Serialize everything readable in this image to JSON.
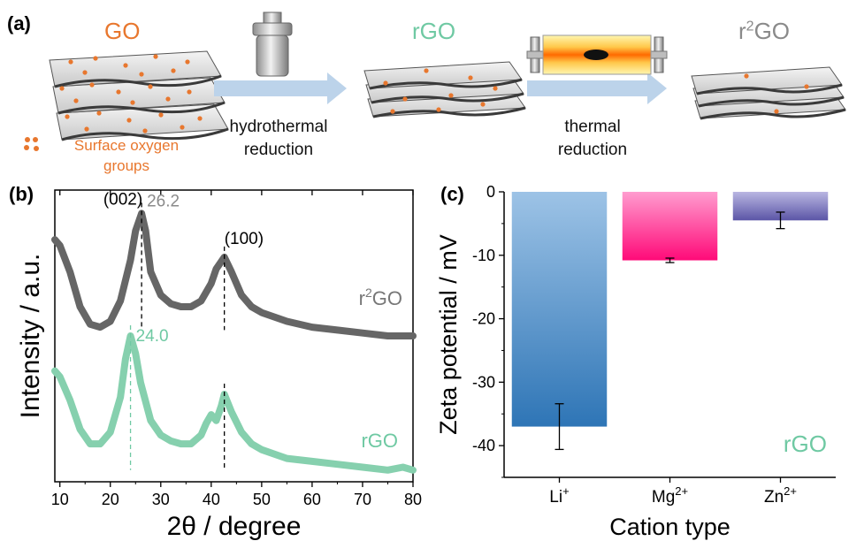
{
  "panels": {
    "a": {
      "tag": "(a)",
      "stages": [
        {
          "label": "GO",
          "color": "#e8772e"
        },
        {
          "label": "rGO",
          "color": "#6fc9a3"
        },
        {
          "label_base": "r",
          "label_sup": "2",
          "label_end": "GO",
          "color": "#8a8a8a"
        }
      ],
      "steps": [
        {
          "line1": "hydrothermal",
          "line2": "reduction",
          "icon": "autoclave-icon"
        },
        {
          "line1": "thermal",
          "line2": "reduction",
          "icon": "tube-furnace-icon"
        }
      ],
      "legend": {
        "line1": "Surface oxygen",
        "line2": "groups",
        "icon": "oxygen-dots-icon",
        "color": "#e8772e"
      }
    },
    "b": {
      "tag": "(b)"
    },
    "c": {
      "tag": "(c)"
    }
  },
  "chart_data": [
    {
      "type": "line",
      "panel": "b",
      "xlabel": "2θ / degree",
      "ylabel": "Intensity / a.u.",
      "xlim": [
        9,
        80
      ],
      "xticks": [
        10,
        20,
        30,
        40,
        50,
        60,
        70,
        80
      ],
      "yticks": [],
      "peak_labels": [
        {
          "text": "(002)",
          "x": 22.5
        },
        {
          "text": "(100)",
          "x": 46.5
        },
        {
          "text": "26.2",
          "x": 26.2,
          "color": "#8a8a8a"
        },
        {
          "text": "24.0",
          "x": 24.0,
          "color": "#6fc9a3"
        }
      ],
      "dashed_lines": [
        {
          "x": 26.2,
          "series": "r2GO"
        },
        {
          "x": 42.6,
          "series": "r2GO"
        },
        {
          "x": 24.0,
          "series": "rGO"
        },
        {
          "x": 42.6,
          "series": "rGO"
        }
      ],
      "series": [
        {
          "name": "r2GO",
          "label_base": "r",
          "label_sup": "2",
          "label_end": "GO",
          "color": "#666666",
          "x": [
            9,
            10,
            12,
            14,
            16,
            18,
            20,
            22,
            24,
            25,
            26.2,
            27,
            28,
            30,
            32,
            34,
            36,
            38,
            40,
            41,
            42.6,
            44,
            46,
            48,
            50,
            55,
            60,
            65,
            70,
            75,
            80
          ],
          "y": [
            0.83,
            0.81,
            0.72,
            0.6,
            0.54,
            0.53,
            0.55,
            0.62,
            0.76,
            0.86,
            0.92,
            0.86,
            0.72,
            0.64,
            0.61,
            0.6,
            0.6,
            0.62,
            0.68,
            0.73,
            0.77,
            0.72,
            0.64,
            0.6,
            0.58,
            0.55,
            0.53,
            0.52,
            0.51,
            0.5,
            0.5
          ]
        },
        {
          "name": "rGO",
          "label": "rGO",
          "color": "#86d0ae",
          "x": [
            9,
            10,
            12,
            14,
            16,
            18,
            20,
            22,
            23,
            24.0,
            25,
            26,
            28,
            30,
            32,
            34,
            36,
            38,
            39,
            40,
            41,
            42,
            42.6,
            44,
            46,
            48,
            50,
            55,
            60,
            65,
            70,
            75,
            78,
            80
          ],
          "y": [
            0.38,
            0.36,
            0.28,
            0.18,
            0.13,
            0.13,
            0.17,
            0.29,
            0.42,
            0.5,
            0.44,
            0.34,
            0.21,
            0.16,
            0.14,
            0.13,
            0.13,
            0.16,
            0.2,
            0.23,
            0.21,
            0.26,
            0.3,
            0.24,
            0.17,
            0.13,
            0.11,
            0.08,
            0.07,
            0.06,
            0.05,
            0.04,
            0.05,
            0.04
          ]
        }
      ]
    },
    {
      "type": "bar",
      "panel": "c",
      "xlabel": "Cation type",
      "ylabel": "Zeta potential / mV",
      "ylim": [
        -45,
        0
      ],
      "yticks": [
        0,
        -10,
        -20,
        -30,
        -40
      ],
      "annotation": "rGO",
      "categories": [
        {
          "base": "Li",
          "sup": "+"
        },
        {
          "base": "Mg",
          "sup": "2+"
        },
        {
          "base": "Zn",
          "sup": "2+"
        }
      ],
      "values": [
        -37.0,
        -10.8,
        -4.5
      ],
      "errors": [
        3.6,
        0.35,
        1.3
      ],
      "colors": [
        {
          "top": "#9dc3e6",
          "bottom": "#2e75b6"
        },
        {
          "top": "#ff9ccf",
          "bottom": "#ff0a78"
        },
        {
          "top": "#b9b6e2",
          "bottom": "#5b55a6"
        }
      ]
    }
  ]
}
